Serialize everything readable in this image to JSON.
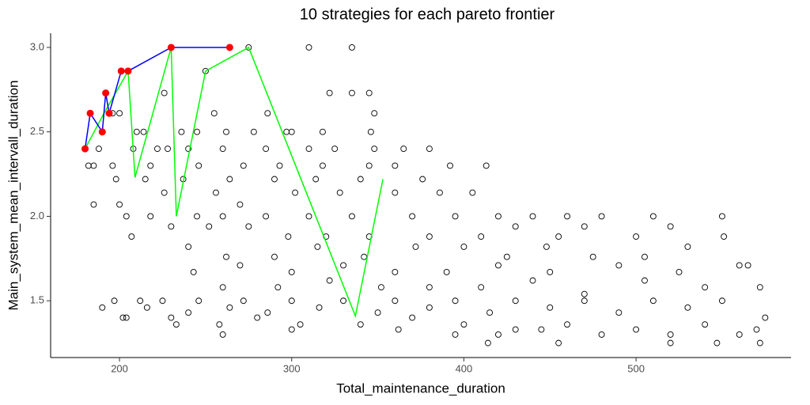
{
  "chart_data": {
    "type": "scatter",
    "title": "10  strategies for each pareto frontier",
    "x_label": "Total_maintenance_duration",
    "y_label": "Main_system_mean_intervall_duration",
    "xlim": [
      160,
      590
    ],
    "ylim": [
      1.164,
      3.084
    ],
    "xticks": [
      200,
      300,
      400,
      500
    ],
    "yticks": [
      1.5,
      {
        "value": 2,
        "label": "2.0"
      },
      2.5,
      {
        "value": 3,
        "label": "3.0"
      }
    ],
    "grid": false,
    "points": {
      "color": "#000000",
      "x": [
        310,
        335,
        275,
        322,
        335,
        345,
        226,
        250,
        286,
        297,
        318,
        300,
        348,
        346,
        278,
        200,
        196,
        210,
        214,
        236,
        245,
        255,
        262,
        240,
        222,
        188,
        208,
        228,
        260,
        285,
        310,
        325,
        348,
        365,
        380,
        182,
        185,
        196,
        218,
        246,
        272,
        293,
        318,
        345,
        360,
        392,
        413,
        185,
        198,
        215,
        237,
        264,
        290,
        314,
        340,
        376,
        200,
        226,
        256,
        270,
        302,
        328,
        360,
        386,
        405,
        204,
        218,
        245,
        260,
        285,
        310,
        335,
        370,
        395,
        420,
        440,
        460,
        480,
        510,
        550,
        207,
        230,
        252,
        275,
        298,
        320,
        345,
        380,
        410,
        430,
        455,
        470,
        500,
        520,
        551,
        240,
        262,
        290,
        315,
        342,
        372,
        400,
        425,
        448,
        475,
        505,
        530,
        560,
        243,
        270,
        300,
        330,
        360,
        390,
        420,
        450,
        490,
        525,
        565,
        260,
        292,
        322,
        352,
        380,
        410,
        440,
        470,
        505,
        540,
        572,
        197,
        212,
        225,
        246,
        272,
        300,
        330,
        360,
        395,
        430,
        470,
        510,
        550,
        190,
        216,
        240,
        264,
        286,
        316,
        350,
        380,
        415,
        450,
        490,
        530,
        575,
        202,
        230,
        258,
        280,
        305,
        340,
        370,
        400,
        430,
        460,
        500,
        540,
        570,
        300,
        362,
        395,
        420,
        445,
        480,
        520,
        560,
        414,
        455,
        520,
        547,
        572,
        260,
        204,
        233
      ],
      "y": [
        3.0,
        3.0,
        3.0,
        2.73,
        2.73,
        2.73,
        2.73,
        2.86,
        2.61,
        2.5,
        2.5,
        2.5,
        2.61,
        2.5,
        2.5,
        2.61,
        2.61,
        2.5,
        2.5,
        2.5,
        2.5,
        2.61,
        2.5,
        2.4,
        2.4,
        2.4,
        2.4,
        2.4,
        2.4,
        2.4,
        2.4,
        2.4,
        2.4,
        2.4,
        2.4,
        2.3,
        2.3,
        2.3,
        2.3,
        2.3,
        2.3,
        2.3,
        2.3,
        2.3,
        2.3,
        2.3,
        2.3,
        2.07,
        2.22,
        2.22,
        2.22,
        2.22,
        2.22,
        2.22,
        2.22,
        2.22,
        2.07,
        2.14,
        2.14,
        2.07,
        2.14,
        2.14,
        2.14,
        2.14,
        2.14,
        2.0,
        2.0,
        2.0,
        2.0,
        2.0,
        2.0,
        2.0,
        2.0,
        2.0,
        2.0,
        2.0,
        2.0,
        2.0,
        2.0,
        2.0,
        1.88,
        1.94,
        1.94,
        1.94,
        1.88,
        1.88,
        1.88,
        1.88,
        1.88,
        1.94,
        1.88,
        1.94,
        1.88,
        1.94,
        1.88,
        1.82,
        1.76,
        1.76,
        1.82,
        1.76,
        1.82,
        1.82,
        1.76,
        1.82,
        1.76,
        1.76,
        1.82,
        1.71,
        1.67,
        1.71,
        1.67,
        1.71,
        1.67,
        1.67,
        1.71,
        1.67,
        1.71,
        1.67,
        1.71,
        1.58,
        1.58,
        1.62,
        1.58,
        1.58,
        1.58,
        1.62,
        1.54,
        1.62,
        1.58,
        1.58,
        1.5,
        1.5,
        1.5,
        1.5,
        1.5,
        1.5,
        1.5,
        1.5,
        1.5,
        1.5,
        1.5,
        1.5,
        1.5,
        1.46,
        1.46,
        1.43,
        1.46,
        1.43,
        1.46,
        1.43,
        1.46,
        1.43,
        1.46,
        1.43,
        1.46,
        1.4,
        1.4,
        1.4,
        1.36,
        1.4,
        1.36,
        1.36,
        1.4,
        1.36,
        1.33,
        1.36,
        1.33,
        1.36,
        1.33,
        1.33,
        1.33,
        1.3,
        1.3,
        1.33,
        1.3,
        1.3,
        1.3,
        1.25,
        1.25,
        1.25,
        1.25,
        1.25,
        1.3,
        1.4,
        1.36
      ]
    },
    "strategies": {
      "color": "#00ff00",
      "x": [
        180,
        191,
        205,
        209,
        230,
        233,
        250,
        275,
        337,
        353
      ],
      "y": [
        2.4,
        2.61,
        2.86,
        2.23,
        3.0,
        2.0,
        2.86,
        3.0,
        1.41,
        2.22
      ]
    },
    "pareto": {
      "color": "#ff0000",
      "line_color": "#0000ff",
      "x": [
        180,
        183,
        190,
        192,
        194,
        201,
        205,
        230,
        264
      ],
      "y": [
        2.4,
        2.61,
        2.5,
        2.73,
        2.61,
        2.86,
        2.86,
        3.0,
        3.0
      ]
    }
  }
}
